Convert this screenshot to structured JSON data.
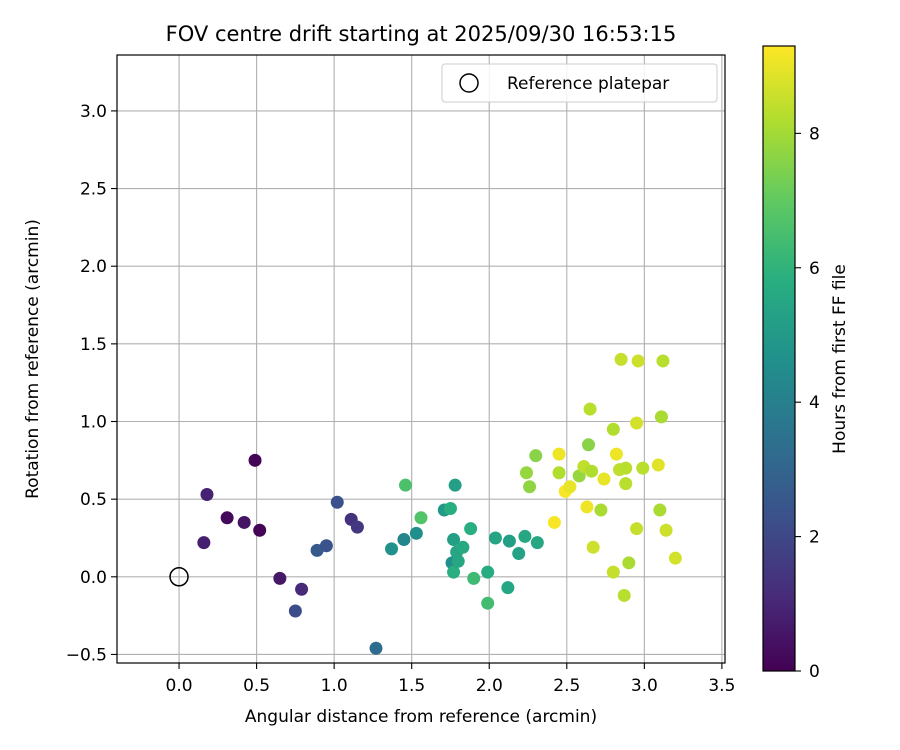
{
  "chart_data": {
    "type": "scatter",
    "title": "FOV centre drift starting at 2025/09/30 16:53:15",
    "xlabel": "Angular distance from reference (arcmin)",
    "ylabel": "Rotation from reference (arcmin)",
    "xlim": [
      -0.4,
      3.52
    ],
    "ylim": [
      -0.555,
      3.36
    ],
    "xticks": [
      0.0,
      0.5,
      1.0,
      1.5,
      2.0,
      2.5,
      3.0,
      3.5
    ],
    "xtick_labels": [
      "0.0",
      "0.5",
      "1.0",
      "1.5",
      "2.0",
      "2.5",
      "3.0",
      "3.5"
    ],
    "yticks": [
      -0.5,
      0.0,
      0.5,
      1.0,
      1.5,
      2.0,
      2.5,
      3.0
    ],
    "ytick_labels": [
      "−0.5",
      "0.0",
      "0.5",
      "1.0",
      "1.5",
      "2.0",
      "2.5",
      "3.0"
    ],
    "grid": true,
    "legend": {
      "position": "top-right",
      "entries": [
        "Reference platepar"
      ]
    },
    "reference_point": {
      "x": 0.0,
      "y": 0.0
    },
    "colorbar": {
      "label": "Hours from first FF file",
      "range": [
        0,
        9.3
      ],
      "ticks": [
        0,
        2,
        4,
        6,
        8
      ],
      "tick_labels": [
        "0",
        "2",
        "4",
        "6",
        "8"
      ],
      "colormap": "viridis"
    },
    "points": [
      {
        "x": 0.16,
        "y": 0.22,
        "t": 0.8
      },
      {
        "x": 0.18,
        "y": 0.53,
        "t": 0.9
      },
      {
        "x": 0.31,
        "y": 0.38,
        "t": 0.2
      },
      {
        "x": 0.42,
        "y": 0.35,
        "t": 0.5
      },
      {
        "x": 0.49,
        "y": 0.75,
        "t": 0.1
      },
      {
        "x": 0.52,
        "y": 0.3,
        "t": 0.1
      },
      {
        "x": 0.65,
        "y": -0.01,
        "t": 0.6
      },
      {
        "x": 0.75,
        "y": -0.22,
        "t": 2.2
      },
      {
        "x": 0.79,
        "y": -0.08,
        "t": 1.1
      },
      {
        "x": 0.89,
        "y": 0.17,
        "t": 2.6
      },
      {
        "x": 0.95,
        "y": 0.2,
        "t": 2.4
      },
      {
        "x": 1.02,
        "y": 0.48,
        "t": 2.3
      },
      {
        "x": 1.11,
        "y": 0.37,
        "t": 1.3
      },
      {
        "x": 1.15,
        "y": 0.32,
        "t": 1.5
      },
      {
        "x": 1.27,
        "y": -0.46,
        "t": 3.3
      },
      {
        "x": 1.37,
        "y": 0.18,
        "t": 4.7
      },
      {
        "x": 1.45,
        "y": 0.24,
        "t": 4.2
      },
      {
        "x": 1.46,
        "y": 0.59,
        "t": 6.6
      },
      {
        "x": 1.53,
        "y": 0.28,
        "t": 4.6
      },
      {
        "x": 1.56,
        "y": 0.38,
        "t": 6.7
      },
      {
        "x": 1.71,
        "y": 0.43,
        "t": 5.0
      },
      {
        "x": 1.75,
        "y": 0.44,
        "t": 5.8
      },
      {
        "x": 1.76,
        "y": 0.09,
        "t": 4.6
      },
      {
        "x": 1.77,
        "y": 0.24,
        "t": 5.2
      },
      {
        "x": 1.77,
        "y": 0.03,
        "t": 5.8
      },
      {
        "x": 1.78,
        "y": 0.59,
        "t": 5.2
      },
      {
        "x": 1.79,
        "y": 0.16,
        "t": 5.4
      },
      {
        "x": 1.8,
        "y": 0.1,
        "t": 5.5
      },
      {
        "x": 1.83,
        "y": 0.19,
        "t": 5.6
      },
      {
        "x": 1.88,
        "y": 0.31,
        "t": 5.8
      },
      {
        "x": 1.9,
        "y": -0.01,
        "t": 6.3
      },
      {
        "x": 1.99,
        "y": 0.03,
        "t": 5.7
      },
      {
        "x": 1.99,
        "y": -0.17,
        "t": 6.4
      },
      {
        "x": 2.04,
        "y": 0.25,
        "t": 5.4
      },
      {
        "x": 2.13,
        "y": 0.23,
        "t": 5.2
      },
      {
        "x": 2.12,
        "y": -0.07,
        "t": 5.5
      },
      {
        "x": 2.19,
        "y": 0.15,
        "t": 5.3
      },
      {
        "x": 2.23,
        "y": 0.26,
        "t": 5.5
      },
      {
        "x": 2.24,
        "y": 0.67,
        "t": 7.8
      },
      {
        "x": 2.26,
        "y": 0.58,
        "t": 7.7
      },
      {
        "x": 2.3,
        "y": 0.78,
        "t": 7.6
      },
      {
        "x": 2.31,
        "y": 0.22,
        "t": 5.5
      },
      {
        "x": 2.42,
        "y": 0.35,
        "t": 9.2
      },
      {
        "x": 2.45,
        "y": 0.79,
        "t": 9.1
      },
      {
        "x": 2.45,
        "y": 0.67,
        "t": 8.2
      },
      {
        "x": 2.49,
        "y": 0.55,
        "t": 9.2
      },
      {
        "x": 2.52,
        "y": 0.58,
        "t": 9.0
      },
      {
        "x": 2.58,
        "y": 0.65,
        "t": 7.8
      },
      {
        "x": 2.61,
        "y": 0.71,
        "t": 8.4
      },
      {
        "x": 2.63,
        "y": 0.45,
        "t": 9.1
      },
      {
        "x": 2.64,
        "y": 0.85,
        "t": 7.6
      },
      {
        "x": 2.65,
        "y": 1.08,
        "t": 8.3
      },
      {
        "x": 2.66,
        "y": 0.68,
        "t": 8.2
      },
      {
        "x": 2.67,
        "y": 0.19,
        "t": 8.6
      },
      {
        "x": 2.72,
        "y": 0.43,
        "t": 8.1
      },
      {
        "x": 2.74,
        "y": 0.63,
        "t": 9.0
      },
      {
        "x": 2.8,
        "y": 0.95,
        "t": 8.2
      },
      {
        "x": 2.8,
        "y": 0.03,
        "t": 8.5
      },
      {
        "x": 2.82,
        "y": 0.79,
        "t": 9.1
      },
      {
        "x": 2.84,
        "y": 0.69,
        "t": 8.4
      },
      {
        "x": 2.85,
        "y": 1.4,
        "t": 8.5
      },
      {
        "x": 2.87,
        "y": -0.12,
        "t": 8.3
      },
      {
        "x": 2.88,
        "y": 0.7,
        "t": 8.3
      },
      {
        "x": 2.88,
        "y": 0.6,
        "t": 8.3
      },
      {
        "x": 2.9,
        "y": 0.09,
        "t": 8.1
      },
      {
        "x": 2.95,
        "y": 0.99,
        "t": 8.7
      },
      {
        "x": 2.95,
        "y": 0.31,
        "t": 8.5
      },
      {
        "x": 2.96,
        "y": 1.39,
        "t": 8.6
      },
      {
        "x": 2.99,
        "y": 0.7,
        "t": 8.3
      },
      {
        "x": 3.09,
        "y": 0.72,
        "t": 8.9
      },
      {
        "x": 3.1,
        "y": 0.43,
        "t": 8.1
      },
      {
        "x": 3.11,
        "y": 1.03,
        "t": 8.1
      },
      {
        "x": 3.12,
        "y": 1.39,
        "t": 8.3
      },
      {
        "x": 3.14,
        "y": 0.3,
        "t": 8.6
      },
      {
        "x": 3.2,
        "y": 0.12,
        "t": 8.7
      }
    ]
  }
}
